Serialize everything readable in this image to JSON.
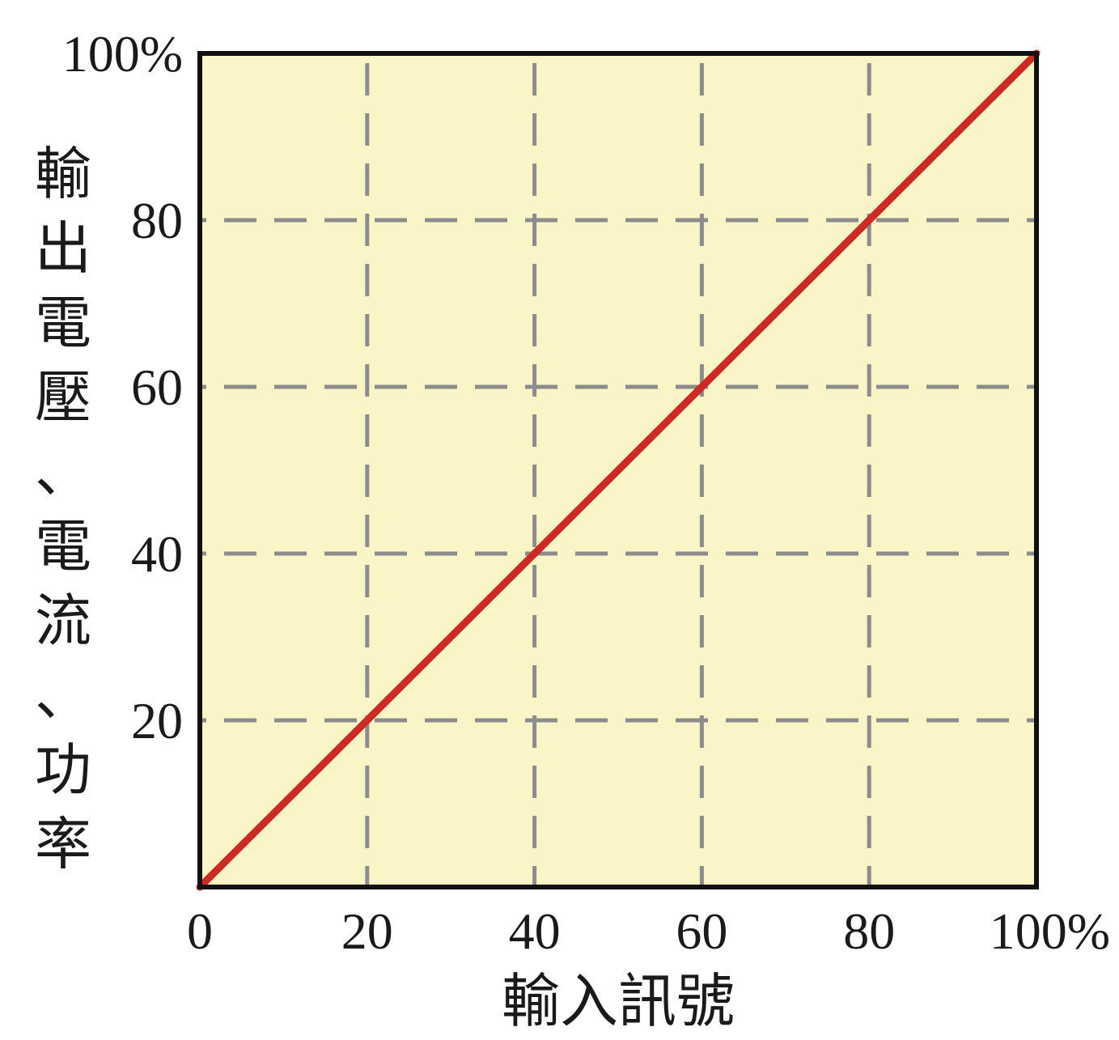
{
  "chart_data": {
    "type": "line",
    "title": "",
    "xlabel": "輸入訊號",
    "ylabel": "輸出電壓、電流、功率",
    "xlim": [
      0,
      100
    ],
    "ylim": [
      0,
      100
    ],
    "x_ticks": [
      "0",
      "20",
      "40",
      "60",
      "80",
      "100%"
    ],
    "y_ticks": [
      "20",
      "40",
      "60",
      "80",
      "100%"
    ],
    "grid": true,
    "legend": "none",
    "series": [
      {
        "x": [
          0,
          20,
          40,
          60,
          80,
          100
        ],
        "y": [
          0,
          20,
          40,
          60,
          80,
          100
        ]
      }
    ],
    "colors": {
      "plot_background": "#faf5c6",
      "line": "#cc2a22",
      "grid": "#8c8c8c",
      "frame": "#111111"
    }
  }
}
